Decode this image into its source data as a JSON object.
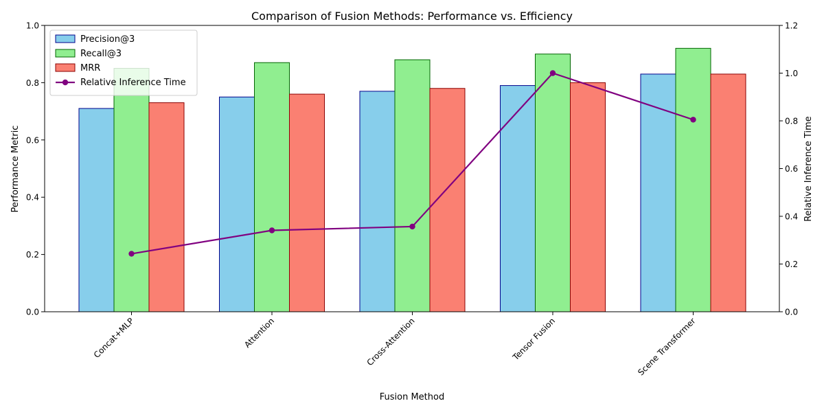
{
  "chart_data": {
    "type": "bar",
    "title": "Comparison of Fusion Methods: Performance vs. Efficiency",
    "xlabel": "Fusion Method",
    "ylabel": "Performance Metric",
    "y2label": "Relative Inference Time",
    "categories": [
      "Concat+MLP",
      "Attention",
      "Cross-Attention",
      "Tensor Fusion",
      "Scene Transformer"
    ],
    "ylim": [
      0,
      1.0
    ],
    "y2lim": [
      0,
      1.2
    ],
    "yticks": [
      "0.0",
      "0.2",
      "0.4",
      "0.6",
      "0.8",
      "1.0"
    ],
    "y2ticks": [
      "0.0",
      "0.2",
      "0.4",
      "0.6",
      "0.8",
      "1.0",
      "1.2"
    ],
    "series": [
      {
        "name": "Precision@3",
        "kind": "bar",
        "axis": "left",
        "fill": "#87ceeb",
        "edge": "#00008b",
        "values": [
          0.71,
          0.75,
          0.77,
          0.79,
          0.83
        ]
      },
      {
        "name": "Recall@3",
        "kind": "bar",
        "axis": "left",
        "fill": "#90ee90",
        "edge": "#006400",
        "values": [
          0.85,
          0.87,
          0.88,
          0.9,
          0.92
        ]
      },
      {
        "name": "MRR",
        "kind": "bar",
        "axis": "left",
        "fill": "#fa8072",
        "edge": "#8b0000",
        "values": [
          0.73,
          0.76,
          0.78,
          0.8,
          0.83
        ]
      },
      {
        "name": "Relative Inference Time",
        "kind": "line",
        "axis": "right",
        "color": "#800080",
        "values": [
          0.243,
          0.341,
          0.357,
          1.0,
          0.805
        ]
      }
    ],
    "grid": false,
    "legend_position": "top-left"
  }
}
